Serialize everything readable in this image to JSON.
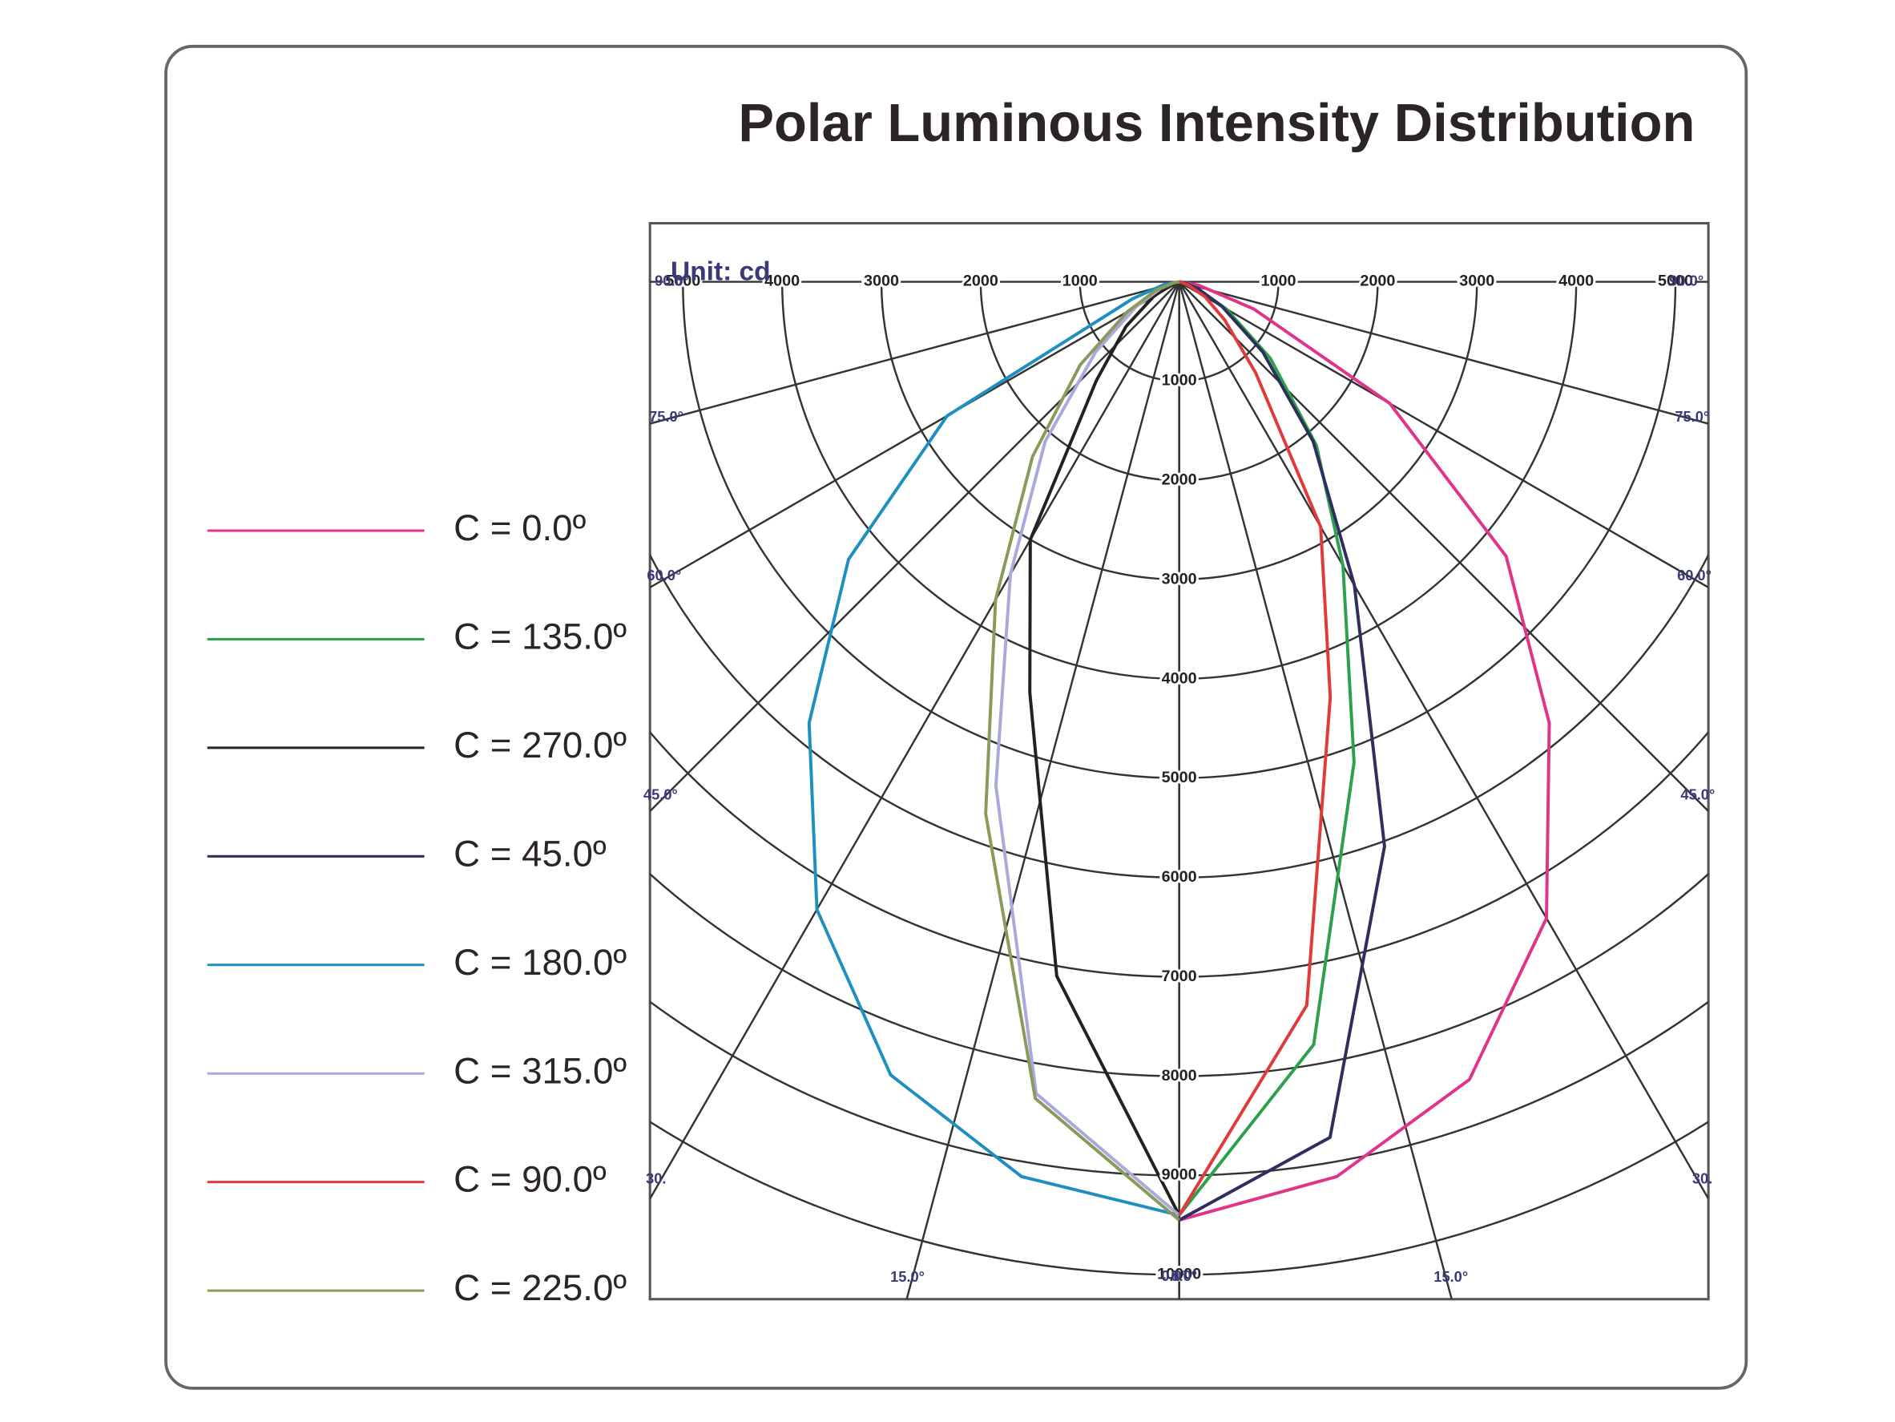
{
  "chart_data": {
    "type": "polar",
    "title": "Polar Luminous Intensity Distribution",
    "unit_label": "Unit: cd",
    "angles": [
      0,
      10,
      20,
      30,
      40,
      50,
      60,
      70,
      80,
      90
    ],
    "rticks": [
      1000,
      2000,
      3000,
      4000,
      5000,
      6000,
      7000,
      8000,
      9000,
      10000
    ],
    "angle_ticks": [
      {
        "value": 0,
        "label": "0.0°"
      },
      {
        "value": 15,
        "label": "15.0°"
      },
      {
        "value": 30,
        "label": "30."
      },
      {
        "value": 45,
        "label": "45.0°"
      },
      {
        "value": 60,
        "label": "60.0°"
      },
      {
        "value": 75,
        "label": "75.0°"
      },
      {
        "value": 90,
        "label": "90.0°"
      }
    ],
    "series": [
      {
        "name": "C = 0.0º",
        "color": "#e0338a",
        "side": "right",
        "values": [
          9450,
          9150,
          8550,
          7400,
          5800,
          4300,
          2450,
          800,
          200,
          0
        ]
      },
      {
        "name": "C = 135.0º",
        "color": "#2ca04a",
        "side": "right",
        "values": [
          9400,
          7800,
          5150,
          3300,
          2150,
          1200,
          550,
          200,
          50,
          0
        ]
      },
      {
        "name": "C = 270.0º",
        "color": "#222222",
        "side": "left",
        "values": [
          9400,
          7100,
          4400,
          3000,
          1300,
          700,
          300,
          100,
          30,
          0
        ]
      },
      {
        "name": "C = 45.0º",
        "color": "#2e2f5e",
        "side": "right",
        "values": [
          9450,
          8750,
          6050,
          3530,
          2100,
          1100,
          500,
          200,
          50,
          0
        ]
      },
      {
        "name": "C = 180.0º",
        "color": "#1f8fc0",
        "side": "left",
        "values": [
          9400,
          9150,
          8500,
          7300,
          5800,
          4350,
          2700,
          500,
          150,
          0
        ]
      },
      {
        "name": "C = 315.0º",
        "color": "#aaa9de",
        "side": "left",
        "values": [
          9400,
          8300,
          5400,
          3400,
          2100,
          1100,
          500,
          200,
          50,
          0
        ]
      },
      {
        "name": "C = 90.0º",
        "color": "#e03a3a",
        "side": "right",
        "values": [
          9400,
          7400,
          4450,
          2850,
          1200,
          600,
          300,
          100,
          20,
          0
        ]
      },
      {
        "name": "C = 225.0º",
        "color": "#8a9a5b",
        "side": "left",
        "values": [
          9450,
          8350,
          5700,
          3700,
          2300,
          1300,
          600,
          250,
          50,
          0
        ]
      }
    ]
  }
}
